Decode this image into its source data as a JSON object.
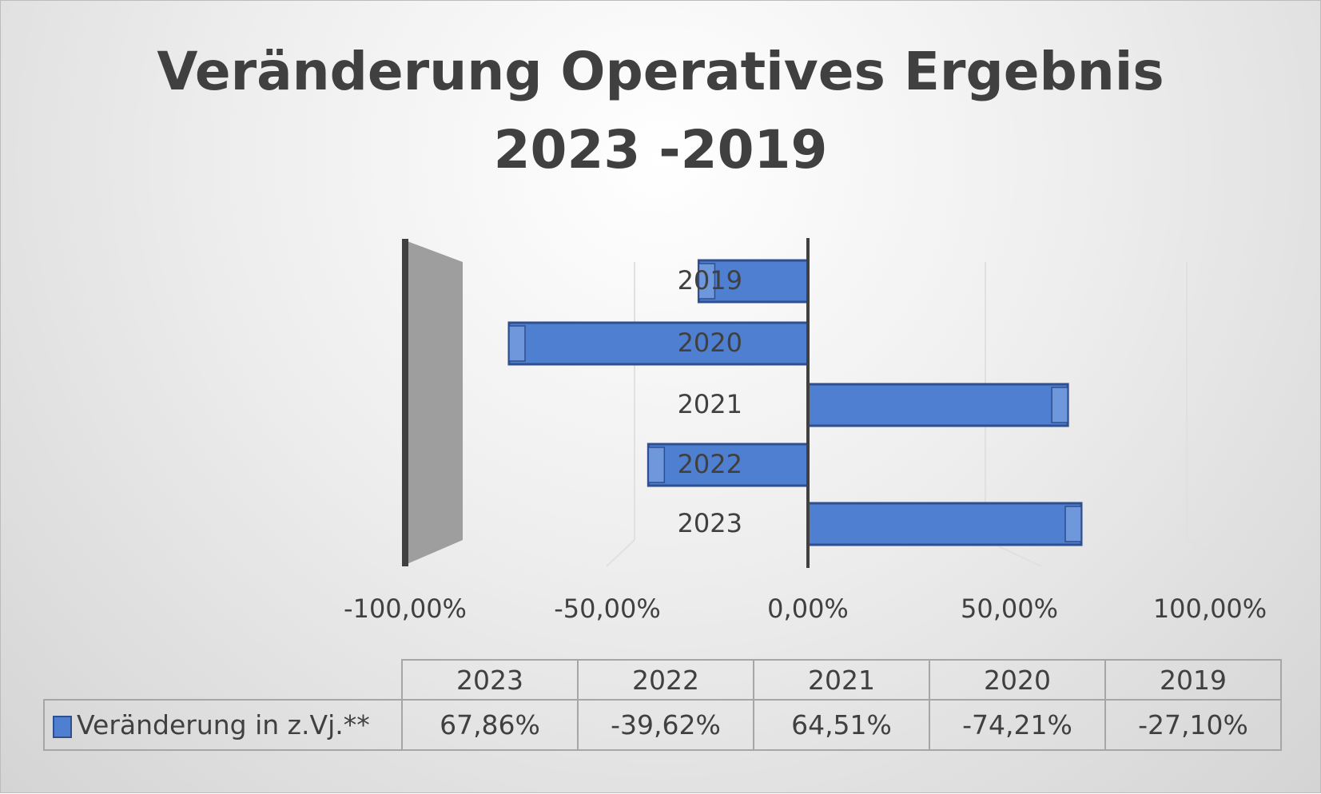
{
  "chart_data": {
    "type": "bar",
    "orientation": "horizontal",
    "title": "Veränderung Operatives Ergebnis 2023 -2019",
    "title_lines": [
      "Veränderung Operatives Ergebnis",
      "2023 -2019"
    ],
    "categories": [
      "2019",
      "2020",
      "2021",
      "2022",
      "2023"
    ],
    "series": [
      {
        "name": "Veränderung in z.Vj.**",
        "values": [
          -27.1,
          -74.21,
          64.51,
          -39.62,
          67.86
        ],
        "color": "#4f7fd0"
      }
    ],
    "xlim": [
      -100,
      100
    ],
    "x_ticks": [
      "-100,00%",
      "-50,00%",
      "0,00%",
      "50,00%",
      "100,00%"
    ],
    "grid": true,
    "legend": "data-table",
    "data_table": {
      "headers": [
        "2023",
        "2022",
        "2021",
        "2020",
        "2019"
      ],
      "row_label": "Veränderung in z.Vj.**",
      "values": [
        "67,86%",
        "-39,62%",
        "64,51%",
        "-74,21%",
        "-27,10%"
      ]
    }
  }
}
